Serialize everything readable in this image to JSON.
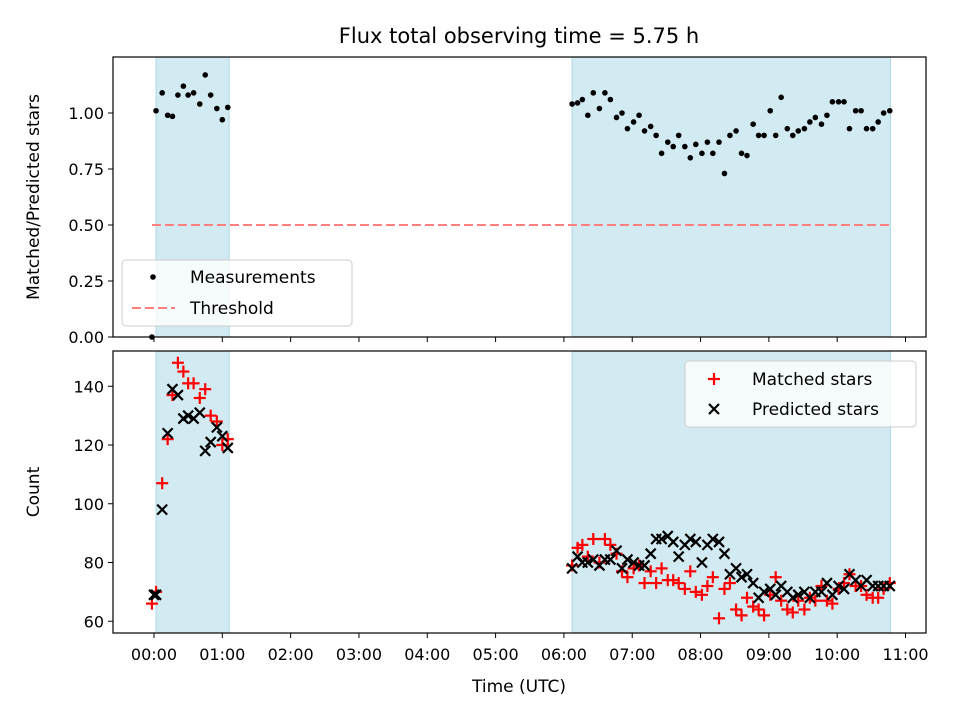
{
  "chart_data": [
    {
      "type": "scatter",
      "title": "Flux total observing time = 5.75 h",
      "xlabel": "",
      "ylabel": "Matched/Predicted stars",
      "xlim": [
        -0.6,
        11.3
      ],
      "ylim": [
        0.0,
        1.25
      ],
      "yticks": [
        0.0,
        0.25,
        0.5,
        0.75,
        1.0
      ],
      "ytick_labels": [
        "0.00",
        "0.25",
        "0.50",
        "0.75",
        "1.00"
      ],
      "shaded_intervals": [
        [
          0.03,
          1.1
        ],
        [
          6.12,
          10.78
        ]
      ],
      "shade_color": "#add8e6",
      "grid": false,
      "legend_position": "lower-left",
      "series": [
        {
          "name": "Measurements",
          "marker": "dot",
          "color": "#000000",
          "x": [
            -0.03,
            0.03,
            0.12,
            0.2,
            0.27,
            0.35,
            0.43,
            0.5,
            0.58,
            0.67,
            0.75,
            0.83,
            0.92,
            1.0,
            1.08,
            6.12,
            6.2,
            6.27,
            6.35,
            6.43,
            6.52,
            6.6,
            6.68,
            6.77,
            6.85,
            6.93,
            7.02,
            7.1,
            7.18,
            7.27,
            7.35,
            7.43,
            7.52,
            7.6,
            7.68,
            7.77,
            7.85,
            7.93,
            8.02,
            8.1,
            8.18,
            8.27,
            8.35,
            8.43,
            8.52,
            8.6,
            8.68,
            8.77,
            8.85,
            8.93,
            9.02,
            9.1,
            9.18,
            9.27,
            9.35,
            9.43,
            9.52,
            9.6,
            9.68,
            9.77,
            9.85,
            9.93,
            10.02,
            10.1,
            10.18,
            10.27,
            10.35,
            10.43,
            10.52,
            10.6,
            10.68,
            10.77
          ],
          "y": [
            0.0,
            1.01,
            1.09,
            0.99,
            0.985,
            1.08,
            1.12,
            1.08,
            1.09,
            1.04,
            1.17,
            1.08,
            1.02,
            0.97,
            1.025,
            1.04,
            1.045,
            1.06,
            0.99,
            1.09,
            1.02,
            1.09,
            1.06,
            0.98,
            1.0,
            0.93,
            0.96,
            0.99,
            0.92,
            0.94,
            0.9,
            0.82,
            0.87,
            0.85,
            0.9,
            0.85,
            0.8,
            0.86,
            0.82,
            0.87,
            0.82,
            0.87,
            0.73,
            0.9,
            0.92,
            0.82,
            0.81,
            0.95,
            0.9,
            0.9,
            1.01,
            0.9,
            1.07,
            0.93,
            0.9,
            0.92,
            0.93,
            0.96,
            0.98,
            0.95,
            0.99,
            1.05,
            1.05,
            1.05,
            0.93,
            1.01,
            1.01,
            0.93,
            0.93,
            0.96,
            1.0,
            1.01
          ]
        },
        {
          "name": "Threshold",
          "marker": "dashed-line",
          "color": "#ff7f7f",
          "x": [
            -0.03,
            10.78
          ],
          "y": [
            0.5,
            0.5
          ]
        }
      ]
    },
    {
      "type": "scatter",
      "title": "",
      "xlabel": "Time (UTC)",
      "ylabel": "Count",
      "xlim": [
        -0.6,
        11.3
      ],
      "ylim": [
        56,
        152
      ],
      "yticks": [
        60,
        80,
        100,
        120,
        140
      ],
      "xticks": [
        0,
        1,
        2,
        3,
        4,
        5,
        6,
        7,
        8,
        9,
        10,
        11
      ],
      "xtick_labels": [
        "00:00",
        "01:00",
        "02:00",
        "03:00",
        "04:00",
        "05:00",
        "06:00",
        "07:00",
        "08:00",
        "09:00",
        "10:00",
        "11:00"
      ],
      "shaded_intervals": [
        [
          0.03,
          1.1
        ],
        [
          6.12,
          10.78
        ]
      ],
      "shade_color": "#add8e6",
      "grid": false,
      "legend_position": "upper-right",
      "series": [
        {
          "name": "Matched stars",
          "marker": "plus",
          "color": "#ff0000",
          "x": [
            -0.03,
            0.03,
            0.12,
            0.2,
            0.27,
            0.35,
            0.43,
            0.5,
            0.58,
            0.67,
            0.75,
            0.83,
            0.92,
            1.0,
            1.08,
            6.12,
            6.2,
            6.27,
            6.35,
            6.43,
            6.52,
            6.6,
            6.68,
            6.77,
            6.85,
            6.93,
            7.02,
            7.1,
            7.18,
            7.27,
            7.35,
            7.43,
            7.52,
            7.6,
            7.68,
            7.77,
            7.85,
            7.93,
            8.02,
            8.1,
            8.18,
            8.27,
            8.35,
            8.43,
            8.52,
            8.6,
            8.68,
            8.77,
            8.85,
            8.93,
            9.02,
            9.1,
            9.18,
            9.27,
            9.35,
            9.43,
            9.52,
            9.6,
            9.68,
            9.77,
            9.85,
            9.93,
            10.02,
            10.1,
            10.18,
            10.27,
            10.35,
            10.43,
            10.52,
            10.6,
            10.68,
            10.77
          ],
          "y": [
            66,
            70,
            107,
            122,
            137,
            148,
            145,
            141,
            141,
            136,
            139,
            130,
            128,
            120,
            122,
            79,
            85,
            86,
            82,
            88,
            80,
            88,
            86,
            83,
            77,
            75,
            78,
            79,
            73,
            77,
            73,
            78,
            74,
            74,
            73,
            71,
            77,
            70,
            69,
            72,
            75,
            61,
            71,
            73,
            64,
            62,
            68,
            65,
            64,
            62,
            69,
            75,
            67,
            64,
            63,
            67,
            64,
            68,
            67,
            72,
            67,
            66,
            71,
            73,
            76,
            72,
            72,
            69,
            68,
            68,
            71,
            73
          ]
        },
        {
          "name": "Predicted stars",
          "marker": "x",
          "color": "#000000",
          "x": [
            0.0,
            0.03,
            0.12,
            0.2,
            0.27,
            0.35,
            0.43,
            0.5,
            0.58,
            0.67,
            0.75,
            0.83,
            0.92,
            1.0,
            1.08,
            6.12,
            6.2,
            6.27,
            6.35,
            6.43,
            6.52,
            6.6,
            6.68,
            6.77,
            6.85,
            6.93,
            7.02,
            7.1,
            7.18,
            7.27,
            7.35,
            7.43,
            7.52,
            7.6,
            7.68,
            7.77,
            7.85,
            7.93,
            8.02,
            8.1,
            8.18,
            8.27,
            8.35,
            8.43,
            8.52,
            8.6,
            8.68,
            8.77,
            8.85,
            8.93,
            9.02,
            9.1,
            9.18,
            9.27,
            9.35,
            9.43,
            9.52,
            9.6,
            9.68,
            9.77,
            9.85,
            9.93,
            10.02,
            10.1,
            10.18,
            10.27,
            10.35,
            10.43,
            10.52,
            10.6,
            10.68,
            10.77
          ],
          "y": [
            69,
            69,
            98,
            124,
            139,
            137,
            129,
            130,
            129,
            131,
            118,
            121,
            126,
            123,
            119,
            78,
            82,
            80,
            80,
            81,
            79,
            81,
            81,
            84,
            78,
            81,
            80,
            79,
            79,
            83,
            88,
            88,
            89,
            87,
            82,
            86,
            88,
            87,
            80,
            86,
            88,
            87,
            83,
            76,
            78,
            75,
            76,
            73,
            68,
            70,
            71,
            69,
            72,
            70,
            68,
            69,
            70,
            68,
            70,
            70,
            73,
            69,
            72,
            71,
            76,
            74,
            72,
            74,
            72,
            72,
            72,
            72
          ]
        }
      ]
    }
  ]
}
